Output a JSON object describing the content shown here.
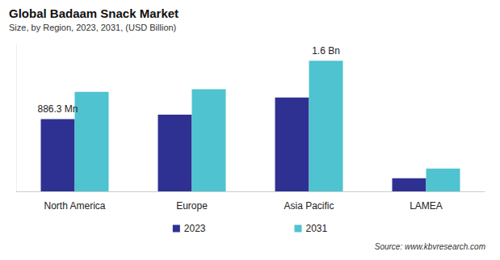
{
  "chart_data": {
    "type": "bar",
    "title": "Global Badaam Snack Market",
    "subtitle": "Size, by Region, 2023, 2031, (USD Billion)",
    "categories": [
      "North America",
      "Europe",
      "Asia Pacific",
      "LAMEA"
    ],
    "series": [
      {
        "name": "2023",
        "color": "#2e3192",
        "values": [
          0.8863,
          0.94,
          1.15,
          0.16
        ],
        "value_labels": [
          "886.3 Mn",
          null,
          null,
          null
        ]
      },
      {
        "name": "2031",
        "color": "#4fc3cf",
        "values": [
          1.22,
          1.25,
          1.6,
          0.28
        ],
        "value_labels": [
          null,
          null,
          "1.6 Bn",
          null
        ]
      }
    ],
    "ylim": [
      0,
      1.8
    ],
    "yticks": [],
    "grid": false,
    "tick_labels": "x",
    "legend": "bottom",
    "source": "Source: www.kbvresearch.com"
  }
}
